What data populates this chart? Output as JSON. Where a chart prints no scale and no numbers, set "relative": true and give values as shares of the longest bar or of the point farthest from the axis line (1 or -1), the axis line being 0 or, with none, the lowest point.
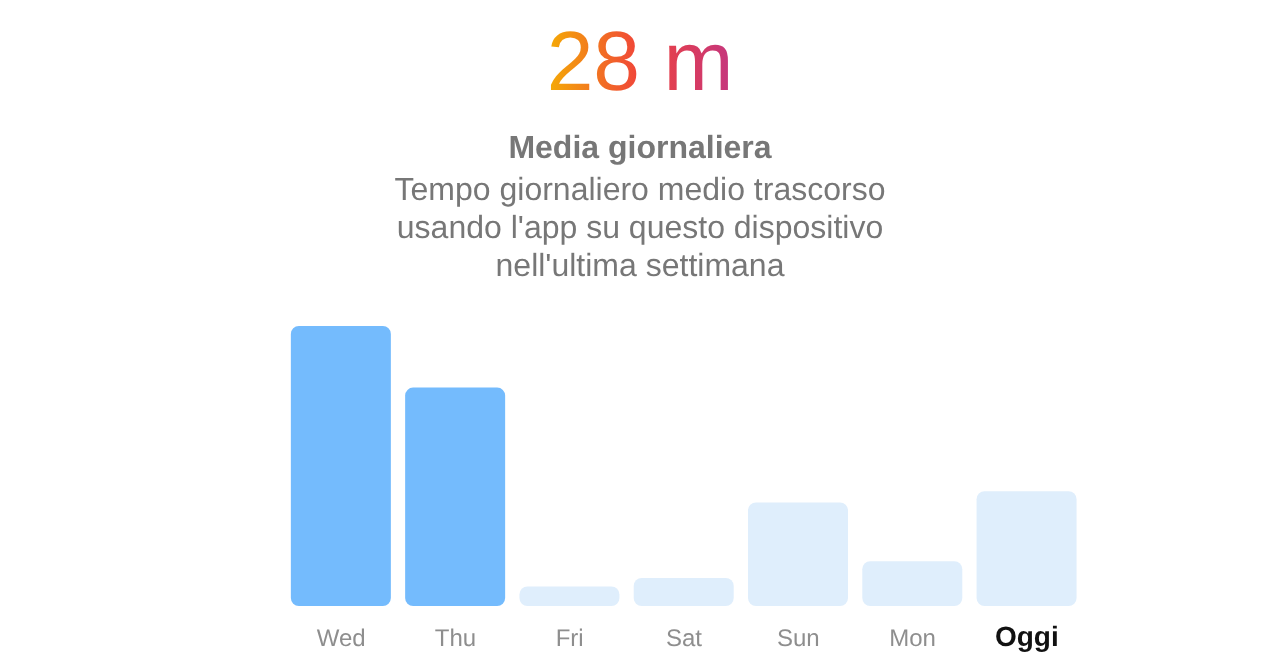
{
  "chart_data": {
    "type": "bar",
    "title": "28 m",
    "subtitle": "Media giornaliera",
    "annotations": [
      "Tempo giornaliero medio trascorso usando l'app su questo dispositivo nell'ultima settimana"
    ],
    "categories": [
      "Wed",
      "Thu",
      "Fri",
      "Sat",
      "Sun",
      "Mon",
      "Oggi"
    ],
    "values": [
      1,
      0.78,
      0.07,
      0.1,
      0.37,
      0.16,
      0.41
    ],
    "colors": [
      "#74bbfd",
      "#74bbfd",
      "#dfeefc",
      "#dfeefc",
      "#dfeefc",
      "#dfeefc",
      "#dfeefc"
    ],
    "relative": true,
    "grid": false,
    "legend": false
  }
}
